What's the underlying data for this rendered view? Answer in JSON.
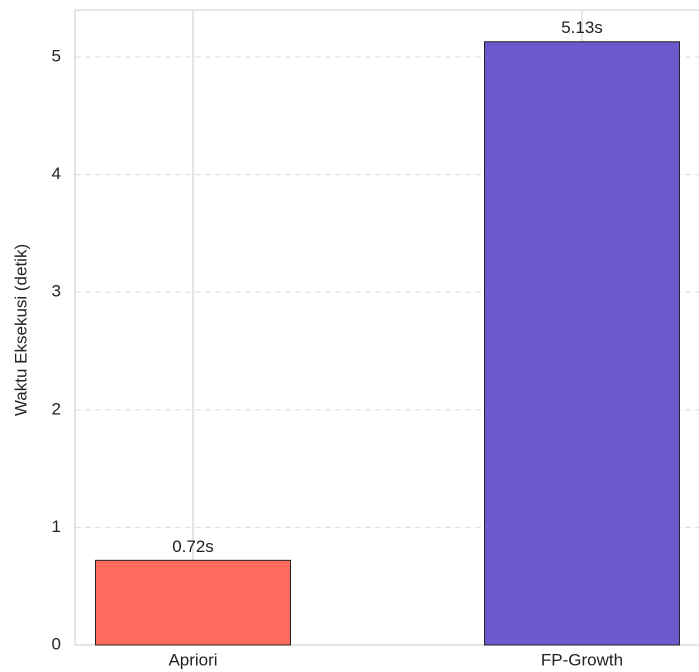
{
  "chart_data": {
    "type": "bar",
    "ylabel": "Waktu Eksekusi (detik)",
    "categories": [
      "Apriori",
      "FP-Growth"
    ],
    "values": [
      0.72,
      5.13
    ],
    "value_labels": [
      "0.72s",
      "5.13s"
    ],
    "colors": [
      "#ff6b5e",
      "#6a5acd"
    ],
    "ylim": [
      0,
      5.4
    ],
    "yticks": [
      0,
      1,
      2,
      3,
      4,
      5
    ],
    "grid": true
  }
}
